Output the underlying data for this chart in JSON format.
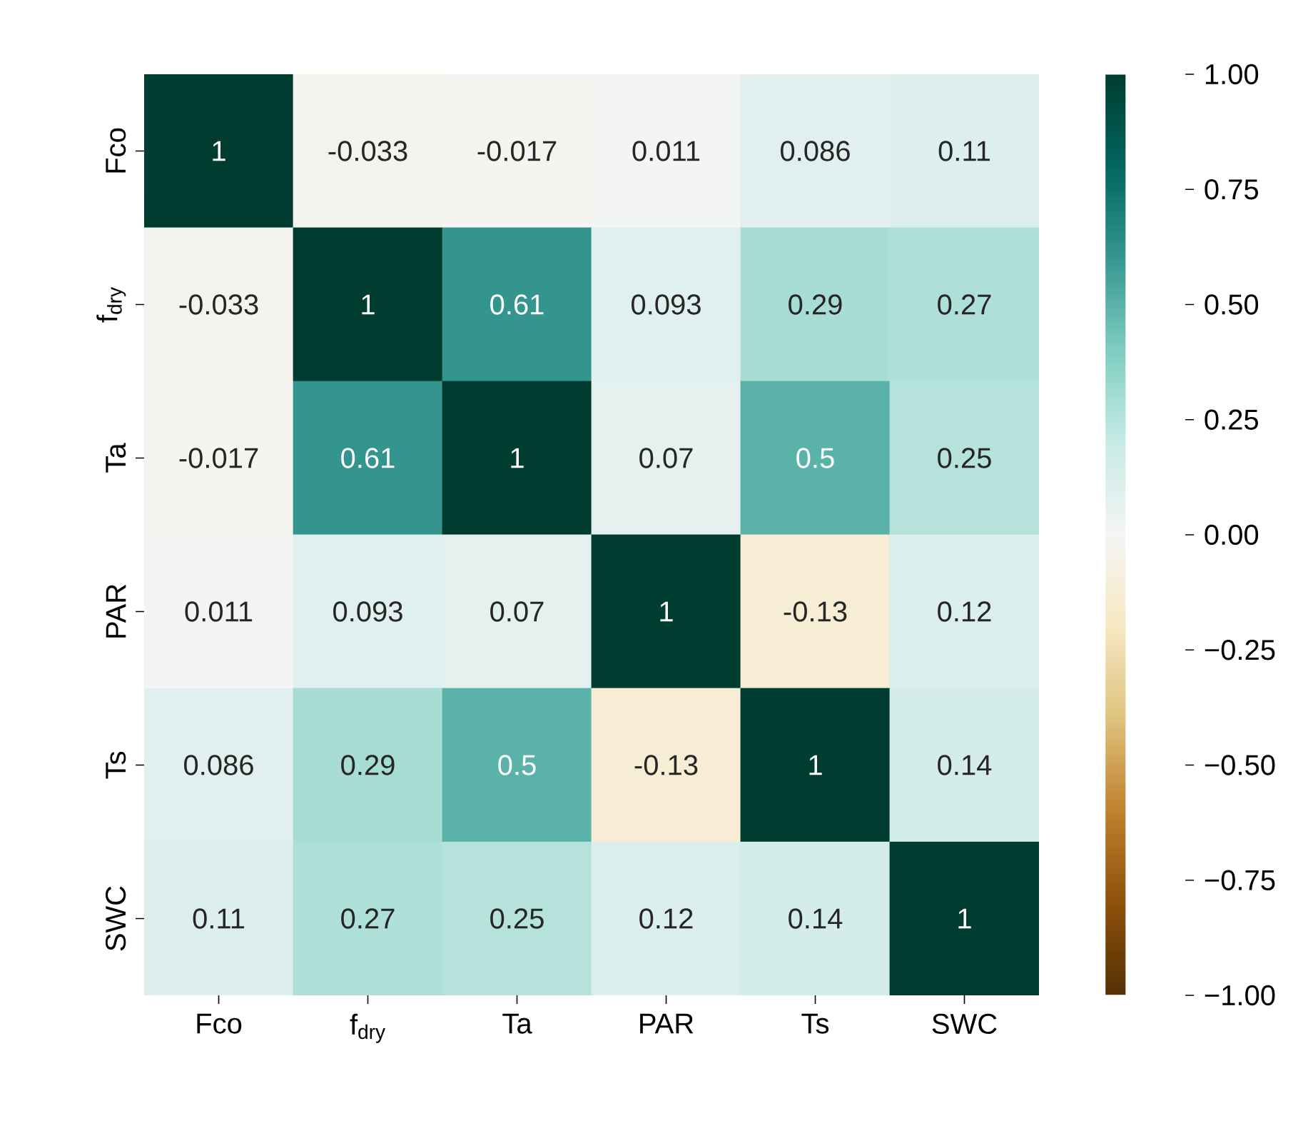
{
  "chart_data": {
    "type": "heatmap",
    "categories": [
      "Fco",
      "f$_{dry}$",
      "Ta",
      "PAR",
      "Ts",
      "SWC"
    ],
    "y_categories": [
      "Fco",
      "f$_{dry}$",
      "Ta",
      "PAR",
      "Ts",
      "SWC"
    ],
    "cells": [
      [
        1,
        -0.033,
        -0.017,
        0.011,
        0.086,
        0.11
      ],
      [
        -0.033,
        1,
        0.61,
        0.093,
        0.29,
        0.27
      ],
      [
        -0.017,
        0.61,
        1,
        0.07,
        0.5,
        0.25
      ],
      [
        0.011,
        0.093,
        0.07,
        1,
        -0.13,
        0.12
      ],
      [
        0.086,
        0.29,
        0.5,
        -0.13,
        1,
        0.14
      ],
      [
        0.11,
        0.27,
        0.25,
        0.12,
        0.14,
        1
      ]
    ],
    "data_labels": true,
    "clim": [
      -1,
      1
    ],
    "cticks": [
      {
        "value": -1,
        "label": "−1.00"
      },
      {
        "value": -0.75,
        "label": "−0.75"
      },
      {
        "value": -0.5,
        "label": "−0.50"
      },
      {
        "value": -0.25,
        "label": "−0.25"
      },
      {
        "value": 0,
        "label": "0.00"
      },
      {
        "value": 0.25,
        "label": "0.25"
      },
      {
        "value": 0.5,
        "label": "0.50"
      },
      {
        "value": 0.75,
        "label": "0.75"
      },
      {
        "value": 1,
        "label": "1.00"
      }
    ]
  }
}
